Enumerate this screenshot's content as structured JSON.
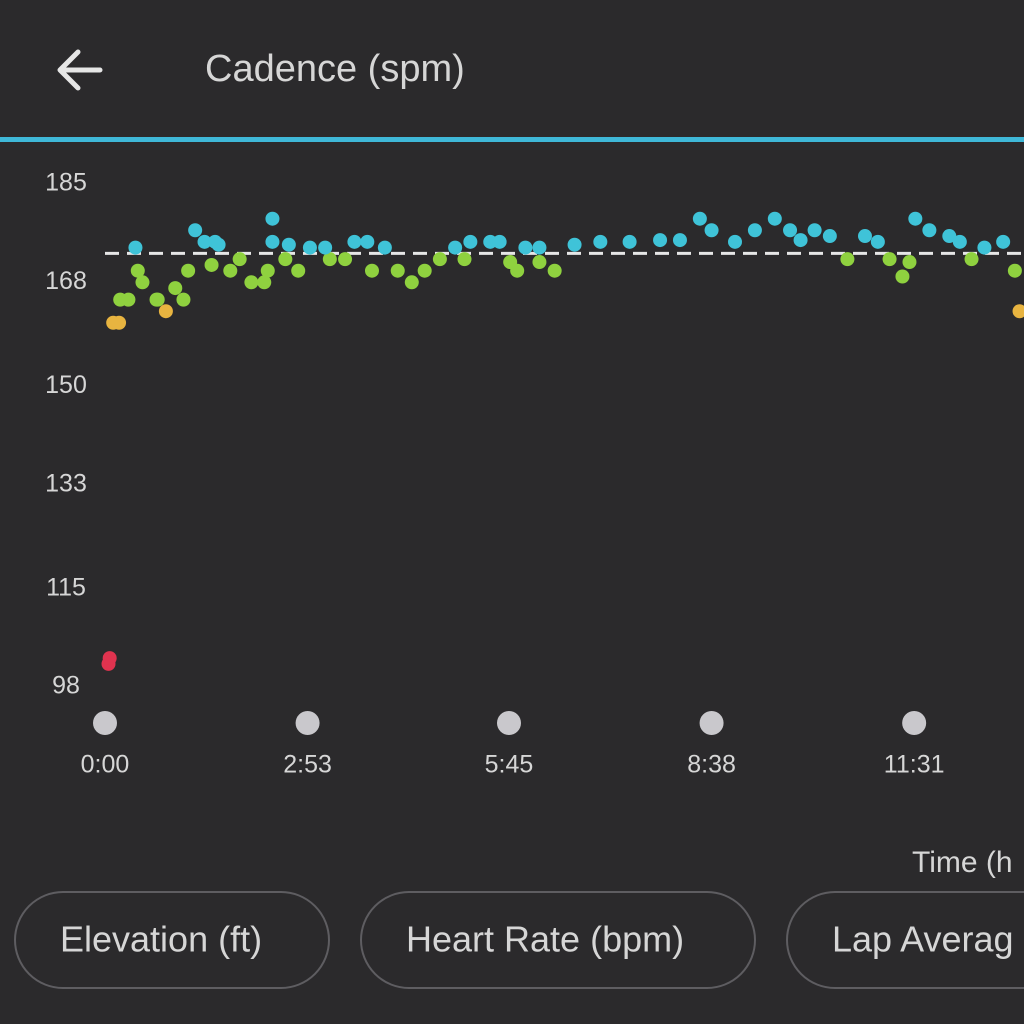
{
  "header": {
    "title": "Cadence (spm)"
  },
  "chart_data": {
    "type": "scatter",
    "x_label": "Time (h",
    "xlim": [
      0,
      785
    ],
    "xticks": [
      {
        "value": 0,
        "label": "0:00"
      },
      {
        "value": 173,
        "label": "2:53"
      },
      {
        "value": 345,
        "label": "5:45"
      },
      {
        "value": 518,
        "label": "8:38"
      },
      {
        "value": 691,
        "label": "11:31"
      }
    ],
    "ylim": [
      98,
      185
    ],
    "yticks": [
      185,
      168,
      150,
      133,
      115,
      98
    ],
    "average": 173,
    "series": [
      {
        "color": "#e0334f",
        "x": [
          3,
          4
        ],
        "values": [
          102,
          103
        ]
      },
      {
        "color": "#e8b440",
        "x": [
          7,
          12,
          52,
          781
        ],
        "values": [
          161,
          161,
          163,
          163
        ]
      },
      {
        "color": "#8fd13f",
        "x": [
          13,
          20,
          28,
          32,
          44,
          45,
          60,
          67,
          71,
          91,
          107,
          115,
          125,
          136,
          139,
          154,
          165,
          192,
          205,
          228,
          250,
          262,
          273,
          286,
          307,
          346,
          352,
          371,
          384,
          634,
          670,
          681,
          687,
          740,
          777
        ],
        "values": [
          165,
          165,
          170,
          168,
          165,
          165,
          167,
          165,
          170,
          171,
          170,
          172,
          168,
          168,
          170,
          172,
          170,
          172,
          172,
          170,
          170,
          168,
          170,
          172,
          172,
          171.5,
          170,
          171.5,
          170,
          172,
          172,
          169,
          171.5,
          172,
          170
        ]
      },
      {
        "color": "#3fc3d8",
        "x": [
          26,
          77,
          85,
          94,
          97,
          143,
          143,
          157,
          175,
          188,
          213,
          224,
          239,
          299,
          312,
          329,
          337,
          359,
          371,
          401,
          423,
          448,
          474,
          491,
          508,
          518,
          538,
          555,
          572,
          585,
          594,
          606,
          619,
          649,
          660,
          692,
          704,
          721,
          730,
          751,
          767
        ],
        "values": [
          174,
          177,
          175,
          175,
          174.5,
          179,
          175,
          174.5,
          174,
          174,
          175,
          175,
          174,
          174,
          175,
          175,
          175,
          174,
          174,
          174.5,
          175,
          175,
          175.3,
          175.3,
          179,
          177,
          175,
          177,
          179,
          177,
          175.3,
          177,
          176,
          176,
          175,
          179,
          177,
          176,
          175,
          174,
          175
        ]
      }
    ]
  },
  "buttons": [
    "Elevation (ft)",
    "Heart Rate (bpm)",
    "Lap Averag"
  ]
}
